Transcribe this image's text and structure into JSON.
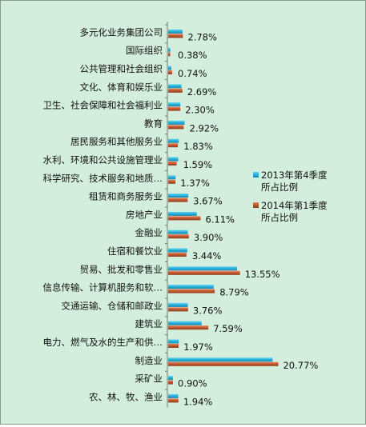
{
  "chart_data": {
    "type": "bar",
    "orientation": "horizontal",
    "categories": [
      "多元化业务集团公司",
      "国际组织",
      "公共管理和社会组织",
      "文化、体育和娱乐业",
      "卫生、社会保障和社会福利业",
      "教育",
      "居民服务和其他服务业",
      "水利、环境和公共设施管理业",
      "科学研究、技术服务和地质…",
      "租赁和商务服务业",
      "房地产业",
      "金融业",
      "住宿和餐饮业",
      "贸易、批发和零售业",
      "信息传输、计算机服务和软…",
      "交通运输、仓储和邮政业",
      "建筑业",
      "电力、燃气及水的生产和供…",
      "制造业",
      "采矿业",
      "农、林、牧、渔业"
    ],
    "series": [
      {
        "name": "2013年第4季度所占比例",
        "values": [
          2.7,
          0.4,
          0.6,
          2.5,
          2.3,
          3.1,
          2.0,
          1.9,
          1.4,
          3.8,
          5.4,
          3.7,
          3.6,
          13.0,
          8.6,
          3.7,
          6.3,
          2.0,
          19.7,
          0.9,
          1.9
        ]
      },
      {
        "name": "2014年第1季度所占比例",
        "values": [
          2.78,
          0.38,
          0.74,
          2.69,
          2.3,
          2.92,
          1.83,
          1.59,
          1.37,
          3.67,
          6.11,
          3.9,
          3.44,
          13.55,
          8.79,
          3.76,
          7.59,
          1.97,
          20.77,
          0.9,
          1.94
        ],
        "labels": [
          "2.78%",
          "0.38%",
          "0.74%",
          "2.69%",
          "2.30%",
          "2.92%",
          "1.83%",
          "1.59%",
          "1.37%",
          "3.67%",
          "6.11%",
          "3.90%",
          "3.44%",
          "13.55%",
          "8.79%",
          "3.76%",
          "7.59%",
          "1.97%",
          "20.77%",
          "0.90%",
          "1.94%"
        ]
      }
    ],
    "xlim": [
      0,
      25
    ],
    "grid": false,
    "legend": "right",
    "colors": [
      "#27aed8",
      "#c0562c"
    ]
  }
}
